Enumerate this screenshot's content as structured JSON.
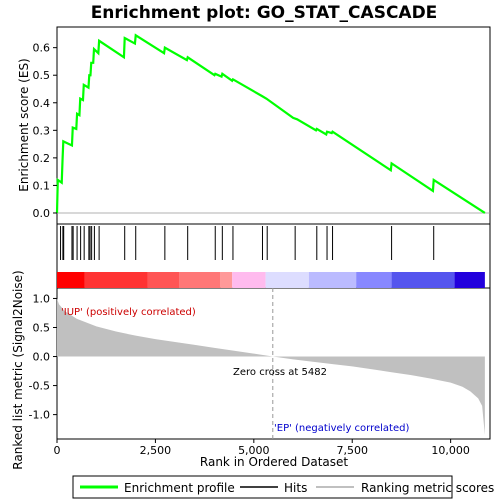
{
  "chart_data": {
    "type": "line",
    "title": "Enrichment plot: GO_STAT_CASCADE",
    "xlabel": "Rank in Ordered Dataset",
    "x_ticks": [
      "0",
      "2,500",
      "5,000",
      "7,500",
      "10,000"
    ],
    "x_tick_values": [
      0,
      2500,
      5000,
      7500,
      10000
    ],
    "xlim": [
      0,
      11000
    ],
    "n_genes": 10900,
    "top_panel": {
      "ylabel": "Enrichment score (ES)",
      "ylim": [
        -0.04,
        0.675
      ],
      "y_ticks": [
        "0.0",
        "0.1",
        "0.2",
        "0.3",
        "0.4",
        "0.5",
        "0.6"
      ],
      "y_tick_values": [
        0.0,
        0.1,
        0.2,
        0.3,
        0.4,
        0.5,
        0.6
      ],
      "series": [
        {
          "name": "Enrichment profile",
          "color": "#00ff00",
          "points": [
            [
              0,
              0.0
            ],
            [
              20,
              0.12
            ],
            [
              120,
              0.11
            ],
            [
              140,
              0.19
            ],
            [
              160,
              0.26
            ],
            [
              380,
              0.245
            ],
            [
              400,
              0.31
            ],
            [
              490,
              0.305
            ],
            [
              510,
              0.36
            ],
            [
              570,
              0.355
            ],
            [
              590,
              0.415
            ],
            [
              660,
              0.41
            ],
            [
              680,
              0.465
            ],
            [
              800,
              0.455
            ],
            [
              820,
              0.5
            ],
            [
              850,
              0.5
            ],
            [
              870,
              0.545
            ],
            [
              920,
              0.545
            ],
            [
              940,
              0.595
            ],
            [
              1050,
              0.58
            ],
            [
              1070,
              0.625
            ],
            [
              1700,
              0.565
            ],
            [
              1720,
              0.635
            ],
            [
              1980,
              0.615
            ],
            [
              2000,
              0.645
            ],
            [
              2720,
              0.58
            ],
            [
              2740,
              0.6
            ],
            [
              3300,
              0.555
            ],
            [
              3320,
              0.565
            ],
            [
              4000,
              0.5
            ],
            [
              4020,
              0.505
            ],
            [
              4180,
              0.495
            ],
            [
              4200,
              0.505
            ],
            [
              4450,
              0.48
            ],
            [
              4470,
              0.485
            ],
            [
              5200,
              0.425
            ],
            [
              5320,
              0.415
            ],
            [
              6000,
              0.345
            ],
            [
              6100,
              0.34
            ],
            [
              6580,
              0.3
            ],
            [
              6600,
              0.305
            ],
            [
              6840,
              0.285
            ],
            [
              6860,
              0.295
            ],
            [
              6980,
              0.29
            ],
            [
              7000,
              0.295
            ],
            [
              8480,
              0.155
            ],
            [
              8500,
              0.18
            ],
            [
              9550,
              0.08
            ],
            [
              9570,
              0.12
            ],
            [
              10870,
              0.0
            ]
          ]
        }
      ]
    },
    "hits": [
      90,
      150,
      170,
      380,
      410,
      510,
      600,
      690,
      810,
      840,
      880,
      950,
      1070,
      1720,
      2000,
      2740,
      3320,
      4020,
      4200,
      4470,
      5220,
      5340,
      6050,
      6600,
      6860,
      7000,
      8500,
      9570
    ],
    "color_bar": {
      "colors": [
        "#ff0000",
        "#ff3333",
        "#ff5555",
        "#ff7777",
        "#ff9999",
        "#ffbbee",
        "#ddddff",
        "#bbbbff",
        "#8888ff",
        "#5555ee",
        "#2200dd"
      ],
      "boundaries": [
        0,
        700,
        2300,
        3100,
        4150,
        4450,
        5300,
        6400,
        7600,
        8500,
        10100,
        10870
      ]
    },
    "bottom_panel": {
      "ylabel": "Ranked list metric (Signal2Noise)",
      "ylim": [
        -1.42,
        1.18
      ],
      "y_ticks": [
        "1.0",
        "0.5",
        "0.0",
        "-0.5",
        "-1.0"
      ],
      "y_tick_values": [
        1.0,
        0.5,
        0.0,
        -0.5,
        -1.0
      ],
      "area_points": [
        [
          0,
          1.0
        ],
        [
          50,
          0.9
        ],
        [
          200,
          0.78
        ],
        [
          500,
          0.65
        ],
        [
          1000,
          0.52
        ],
        [
          1500,
          0.43
        ],
        [
          2000,
          0.36
        ],
        [
          2500,
          0.3
        ],
        [
          3000,
          0.25
        ],
        [
          3500,
          0.2
        ],
        [
          4000,
          0.15
        ],
        [
          4500,
          0.1
        ],
        [
          5000,
          0.05
        ],
        [
          5482,
          0.0
        ],
        [
          6000,
          -0.05
        ],
        [
          6500,
          -0.09
        ],
        [
          7000,
          -0.13
        ],
        [
          7500,
          -0.17
        ],
        [
          8000,
          -0.22
        ],
        [
          8500,
          -0.27
        ],
        [
          9000,
          -0.32
        ],
        [
          9500,
          -0.38
        ],
        [
          10000,
          -0.45
        ],
        [
          10300,
          -0.52
        ],
        [
          10500,
          -0.6
        ],
        [
          10700,
          -0.72
        ],
        [
          10800,
          -0.85
        ],
        [
          10870,
          -1.35
        ]
      ],
      "zero_cross": 5482,
      "zero_cross_label": "Zero cross at 5482",
      "pos_label": "'IUP' (positively correlated)",
      "neg_label": "'EP' (negatively correlated)"
    },
    "legend": {
      "placement": "bottom",
      "items": [
        {
          "label": "Enrichment profile",
          "color": "#00ff00"
        },
        {
          "label": "Hits",
          "color": "#000000"
        },
        {
          "label": "Ranking metric scores",
          "color": "#c0c0c0"
        }
      ]
    }
  }
}
